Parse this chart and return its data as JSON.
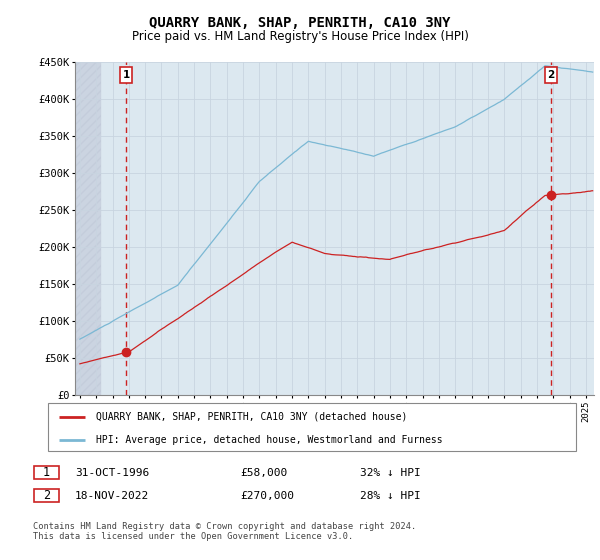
{
  "title": "QUARRY BANK, SHAP, PENRITH, CA10 3NY",
  "subtitle": "Price paid vs. HM Land Registry's House Price Index (HPI)",
  "title_fontsize": 10,
  "subtitle_fontsize": 8.5,
  "hpi_color": "#7bb8d4",
  "price_color": "#cc2222",
  "vline_color": "#cc2222",
  "grid_color": "#c8d4e0",
  "plot_bg": "#dce8f0",
  "hatch_color": "#c8c8d0",
  "ylabel_values": [
    "£0",
    "£50K",
    "£100K",
    "£150K",
    "£200K",
    "£250K",
    "£300K",
    "£350K",
    "£400K",
    "£450K"
  ],
  "yticks": [
    0,
    50000,
    100000,
    150000,
    200000,
    250000,
    300000,
    350000,
    400000,
    450000
  ],
  "xmin": 1993.7,
  "xmax": 2025.5,
  "ymin": 0,
  "ymax": 450000,
  "hatch_end": 1995.3,
  "marker1_x": 1996.83,
  "marker1_y": 58000,
  "marker2_x": 2022.88,
  "marker2_y": 270000,
  "legend_label1": "QUARRY BANK, SHAP, PENRITH, CA10 3NY (detached house)",
  "legend_label2": "HPI: Average price, detached house, Westmorland and Furness",
  "annotation1_label": "1",
  "annotation2_label": "2",
  "table_row1": [
    "1",
    "31-OCT-1996",
    "£58,000",
    "32% ↓ HPI"
  ],
  "table_row2": [
    "2",
    "18-NOV-2022",
    "£270,000",
    "28% ↓ HPI"
  ],
  "footer": "Contains HM Land Registry data © Crown copyright and database right 2024.\nThis data is licensed under the Open Government Licence v3.0."
}
